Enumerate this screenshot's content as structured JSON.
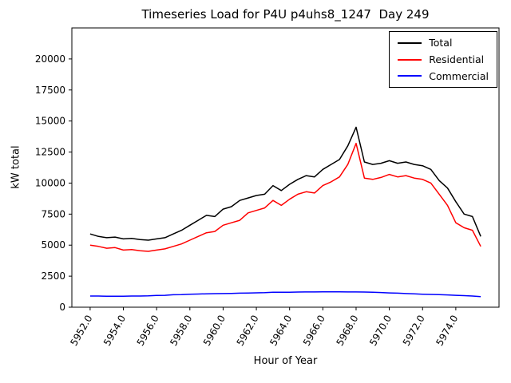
{
  "chart_data": {
    "type": "line",
    "title": "Timeseries Load for P4U p4uhs8_1247  Day 249",
    "xlabel": "Hour of Year",
    "ylabel": "kW total",
    "xlim": [
      5950.9,
      5976.6
    ],
    "ylim": [
      0,
      22500
    ],
    "grid": false,
    "legend_position": "upper right",
    "xticks": {
      "values": [
        5952,
        5954,
        5956,
        5958,
        5960,
        5962,
        5964,
        5966,
        5968,
        5970,
        5972,
        5974
      ],
      "labels": [
        "5952.0",
        "5954.0",
        "5956.0",
        "5958.0",
        "5960.0",
        "5962.0",
        "5964.0",
        "5966.0",
        "5968.0",
        "5970.0",
        "5972.0",
        "5974.0"
      ]
    },
    "yticks": {
      "values": [
        0,
        2500,
        5000,
        7500,
        10000,
        12500,
        15000,
        17500,
        20000
      ],
      "labels": [
        "0",
        "2500",
        "5000",
        "7500",
        "10000",
        "12500",
        "15000",
        "17500",
        "20000"
      ]
    },
    "x": [
      5952.0,
      5952.5,
      5953.0,
      5953.5,
      5954.0,
      5954.5,
      5955.0,
      5955.5,
      5956.0,
      5956.5,
      5957.0,
      5957.5,
      5958.0,
      5958.5,
      5959.0,
      5959.5,
      5960.0,
      5960.5,
      5961.0,
      5961.5,
      5962.0,
      5962.5,
      5963.0,
      5963.5,
      5964.0,
      5964.5,
      5965.0,
      5965.5,
      5966.0,
      5966.5,
      5967.0,
      5967.5,
      5968.0,
      5968.5,
      5969.0,
      5969.5,
      5970.0,
      5970.5,
      5971.0,
      5971.5,
      5972.0,
      5972.5,
      5973.0,
      5973.5,
      5974.0,
      5974.5,
      5975.0,
      5975.5
    ],
    "series": [
      {
        "name": "Total",
        "color": "#000000",
        "values": [
          5900,
          5700,
          5600,
          5650,
          5500,
          5550,
          5450,
          5400,
          5500,
          5600,
          5900,
          6200,
          6600,
          7000,
          7400,
          7300,
          7900,
          8100,
          8600,
          8800,
          9000,
          9100,
          9800,
          9400,
          9900,
          10300,
          10600,
          10500,
          11100,
          11500,
          11900,
          13000,
          14500,
          11700,
          11500,
          11600,
          11800,
          11600,
          11700,
          11500,
          11400,
          11100,
          10200,
          9600,
          8500,
          7500,
          7300,
          5700
        ]
      },
      {
        "name": "Residential",
        "color": "#ff0000",
        "values": [
          5000,
          4900,
          4750,
          4800,
          4600,
          4650,
          4550,
          4500,
          4600,
          4700,
          4900,
          5100,
          5400,
          5700,
          6000,
          6100,
          6600,
          6800,
          7000,
          7600,
          7800,
          8000,
          8600,
          8200,
          8700,
          9100,
          9300,
          9200,
          9800,
          10100,
          10500,
          11500,
          13200,
          10400,
          10300,
          10450,
          10700,
          10500,
          10600,
          10400,
          10300,
          10000,
          9100,
          8200,
          6800,
          6400,
          6200,
          4900
        ]
      },
      {
        "name": "Commercial",
        "color": "#0000ff",
        "values": [
          900,
          900,
          890,
          890,
          890,
          900,
          900,
          910,
          950,
          960,
          1000,
          1010,
          1050,
          1060,
          1080,
          1090,
          1100,
          1110,
          1130,
          1140,
          1160,
          1170,
          1200,
          1200,
          1210,
          1220,
          1230,
          1230,
          1240,
          1240,
          1240,
          1230,
          1230,
          1220,
          1200,
          1180,
          1150,
          1130,
          1100,
          1080,
          1050,
          1030,
          1010,
          990,
          960,
          930,
          900,
          850
        ]
      }
    ]
  }
}
